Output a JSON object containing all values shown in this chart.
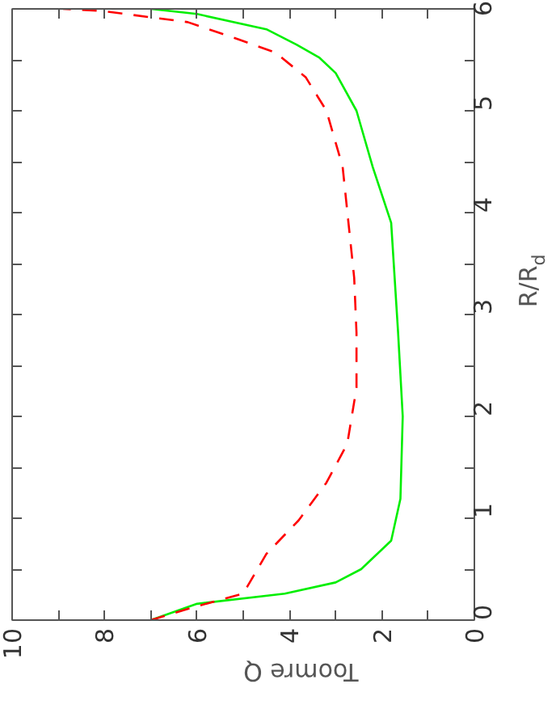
{
  "chart_data": {
    "type": "line",
    "xlabel": "Toomre Q",
    "ylabel": "R/R$_{d}$",
    "xlim": [
      10,
      0
    ],
    "ylim": [
      0,
      6
    ],
    "yticks": [
      0,
      {
        "value": 0.5,
        "label": null
      },
      1,
      {
        "value": 1.5,
        "label": null
      },
      2,
      {
        "value": 2.5,
        "label": null
      },
      3,
      {
        "value": 3.5,
        "label": null
      },
      4,
      {
        "value": 4.5,
        "label": null
      },
      5,
      {
        "value": 5.5,
        "label": null
      },
      6
    ],
    "xticks": [
      0,
      {
        "value": 1,
        "label": null
      },
      2,
      {
        "value": 3,
        "label": null
      },
      4,
      {
        "value": 5,
        "label": null
      },
      6,
      {
        "value": 7,
        "label": null
      },
      8,
      {
        "value": 9,
        "label": null
      },
      10
    ],
    "grid": false,
    "series": [
      {
        "color": "#00ee00",
        "line_style": "solid",
        "values": [
          0,
          0.16,
          0.26,
          0.37,
          0.5,
          0.78,
          1.19,
          2.0,
          2.82,
          3.9,
          4.45,
          5.0,
          5.37,
          5.52,
          5.65,
          5.8,
          5.95,
          6.0
        ],
        "x": [
          7.0,
          6.0,
          4.1,
          3.0,
          2.45,
          1.8,
          1.6,
          1.55,
          1.65,
          1.8,
          2.2,
          2.55,
          3.0,
          3.35,
          3.85,
          4.5,
          6.0,
          7.0
        ]
      },
      {
        "color": "#ff0000",
        "line_style": "dashed",
        "values": [
          0,
          0.13,
          0.26,
          0.65,
          0.98,
          1.35,
          1.73,
          2.28,
          2.82,
          3.36,
          4.45,
          5.0,
          5.33,
          5.57,
          5.7,
          5.87,
          5.98,
          6.0
        ],
        "x": [
          7.0,
          6.05,
          5.0,
          4.5,
          3.8,
          3.2,
          2.75,
          2.55,
          2.55,
          2.6,
          2.85,
          3.2,
          3.65,
          4.3,
          5.1,
          6.2,
          8.05,
          8.9
        ]
      }
    ]
  }
}
